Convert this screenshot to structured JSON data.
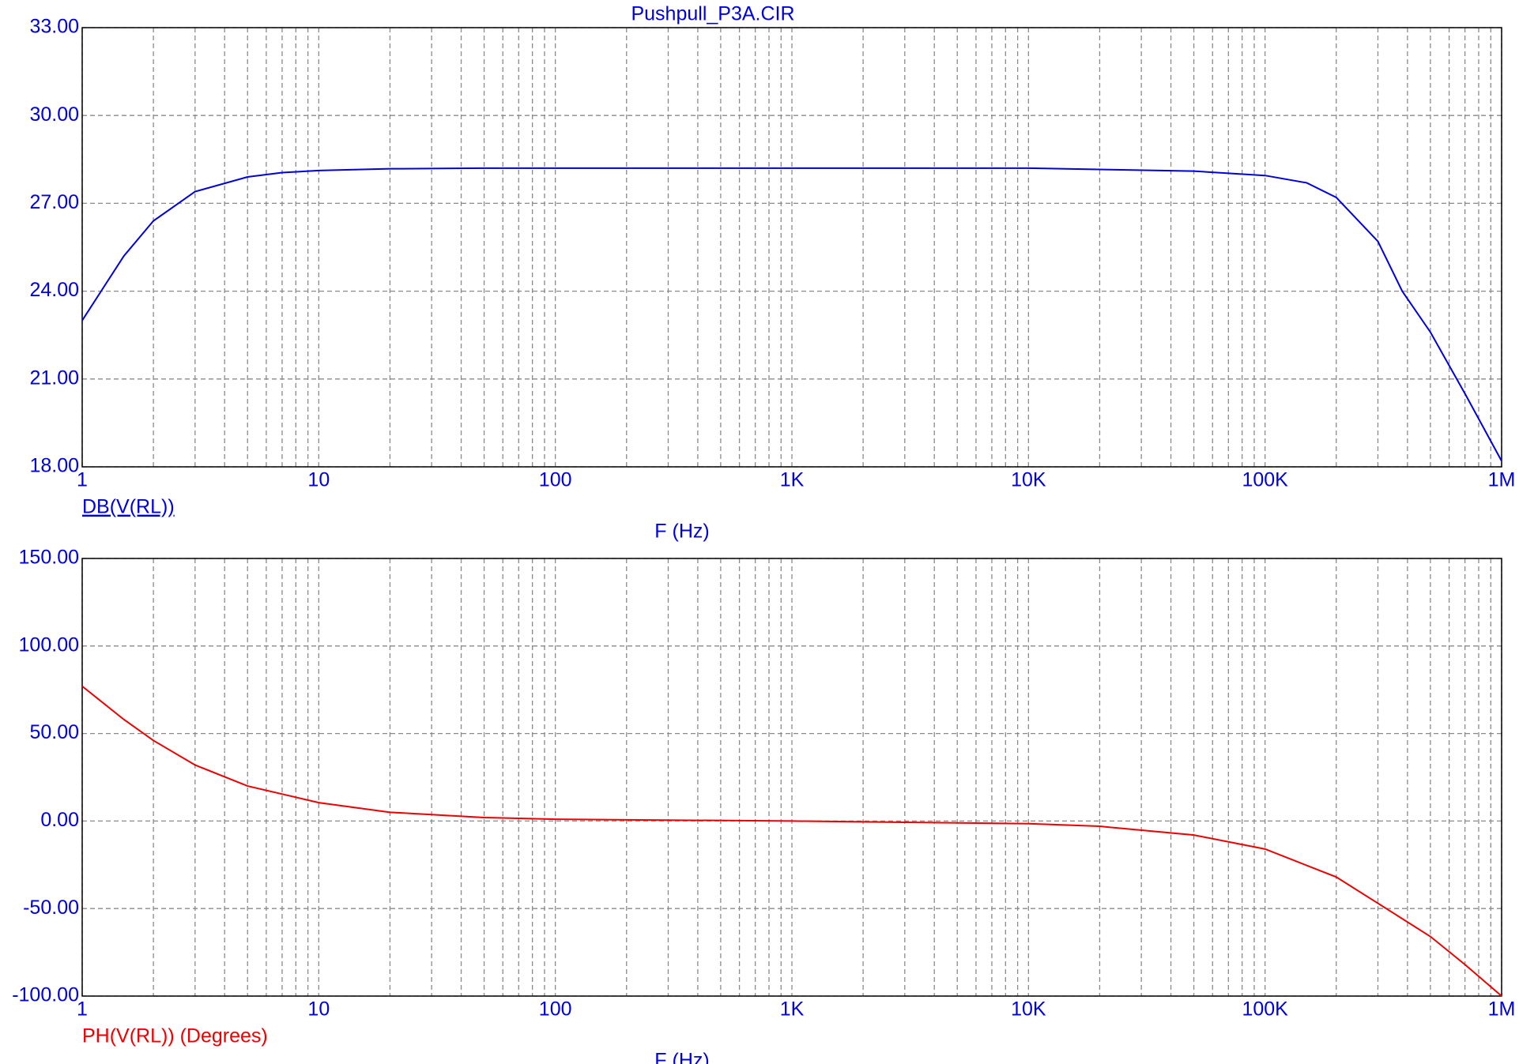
{
  "chart_data": [
    {
      "type": "line",
      "title": "Pushpull_P3A.CIR",
      "x_label": "F (Hz)",
      "x_log": true,
      "grid": true,
      "xlim": [
        1,
        1000000
      ],
      "xticks": [
        1,
        10,
        100,
        {
          "value": 1000,
          "label": "1K"
        },
        {
          "value": 10000,
          "label": "10K"
        },
        {
          "value": 100000,
          "label": "100K"
        },
        {
          "value": 1000000,
          "label": "1M"
        }
      ],
      "ylim": [
        18,
        33
      ],
      "yticks": [
        {
          "value": 33,
          "label": "33.00"
        },
        {
          "value": 30,
          "label": "30.00"
        },
        {
          "value": 27,
          "label": "27.00"
        },
        {
          "value": 24,
          "label": "24.00"
        },
        {
          "value": 21,
          "label": "21.00"
        },
        {
          "value": 18,
          "label": "18.00"
        }
      ],
      "x": [
        1,
        1.5,
        2,
        3,
        5,
        7,
        10,
        20,
        50,
        100,
        1000,
        10000,
        50000,
        100000,
        150000,
        200000,
        300000,
        380000,
        500000,
        700000,
        1000000
      ],
      "series": [
        {
          "name": "DB(V(RL))",
          "color": "#0000dd",
          "values": [
            23.0,
            25.2,
            26.4,
            27.4,
            27.9,
            28.05,
            28.12,
            28.18,
            28.2,
            28.2,
            28.2,
            28.2,
            28.1,
            27.95,
            27.7,
            27.2,
            25.7,
            24.0,
            22.6,
            20.5,
            18.2
          ]
        }
      ]
    },
    {
      "type": "line",
      "x_label": "F (Hz)",
      "x_log": true,
      "grid": true,
      "xlim": [
        1,
        1000000
      ],
      "xticks": [
        1,
        10,
        100,
        {
          "value": 1000,
          "label": "1K"
        },
        {
          "value": 10000,
          "label": "10K"
        },
        {
          "value": 100000,
          "label": "100K"
        },
        {
          "value": 1000000,
          "label": "1M"
        }
      ],
      "ylim": [
        -100,
        150
      ],
      "yticks": [
        {
          "value": 150,
          "label": "150.00"
        },
        {
          "value": 100,
          "label": "100.00"
        },
        {
          "value": 50,
          "label": "50.00"
        },
        {
          "value": 0,
          "label": "0.00"
        },
        {
          "value": -50,
          "label": "-50.00"
        },
        {
          "value": -100,
          "label": "-100.00"
        }
      ],
      "x": [
        1,
        1.5,
        2,
        3,
        5,
        10,
        20,
        50,
        100,
        1000,
        10000,
        20000,
        50000,
        100000,
        200000,
        300000,
        500000,
        700000,
        1000000
      ],
      "series": [
        {
          "name": "PH(V(RL)) (Degrees)",
          "color": "#ee0000",
          "values": [
            77,
            58,
            46,
            32,
            20,
            10.5,
            5,
            2,
            1,
            0,
            -1.5,
            -3,
            -8,
            -16,
            -32,
            -47,
            -66,
            -82,
            -100
          ]
        }
      ]
    }
  ]
}
